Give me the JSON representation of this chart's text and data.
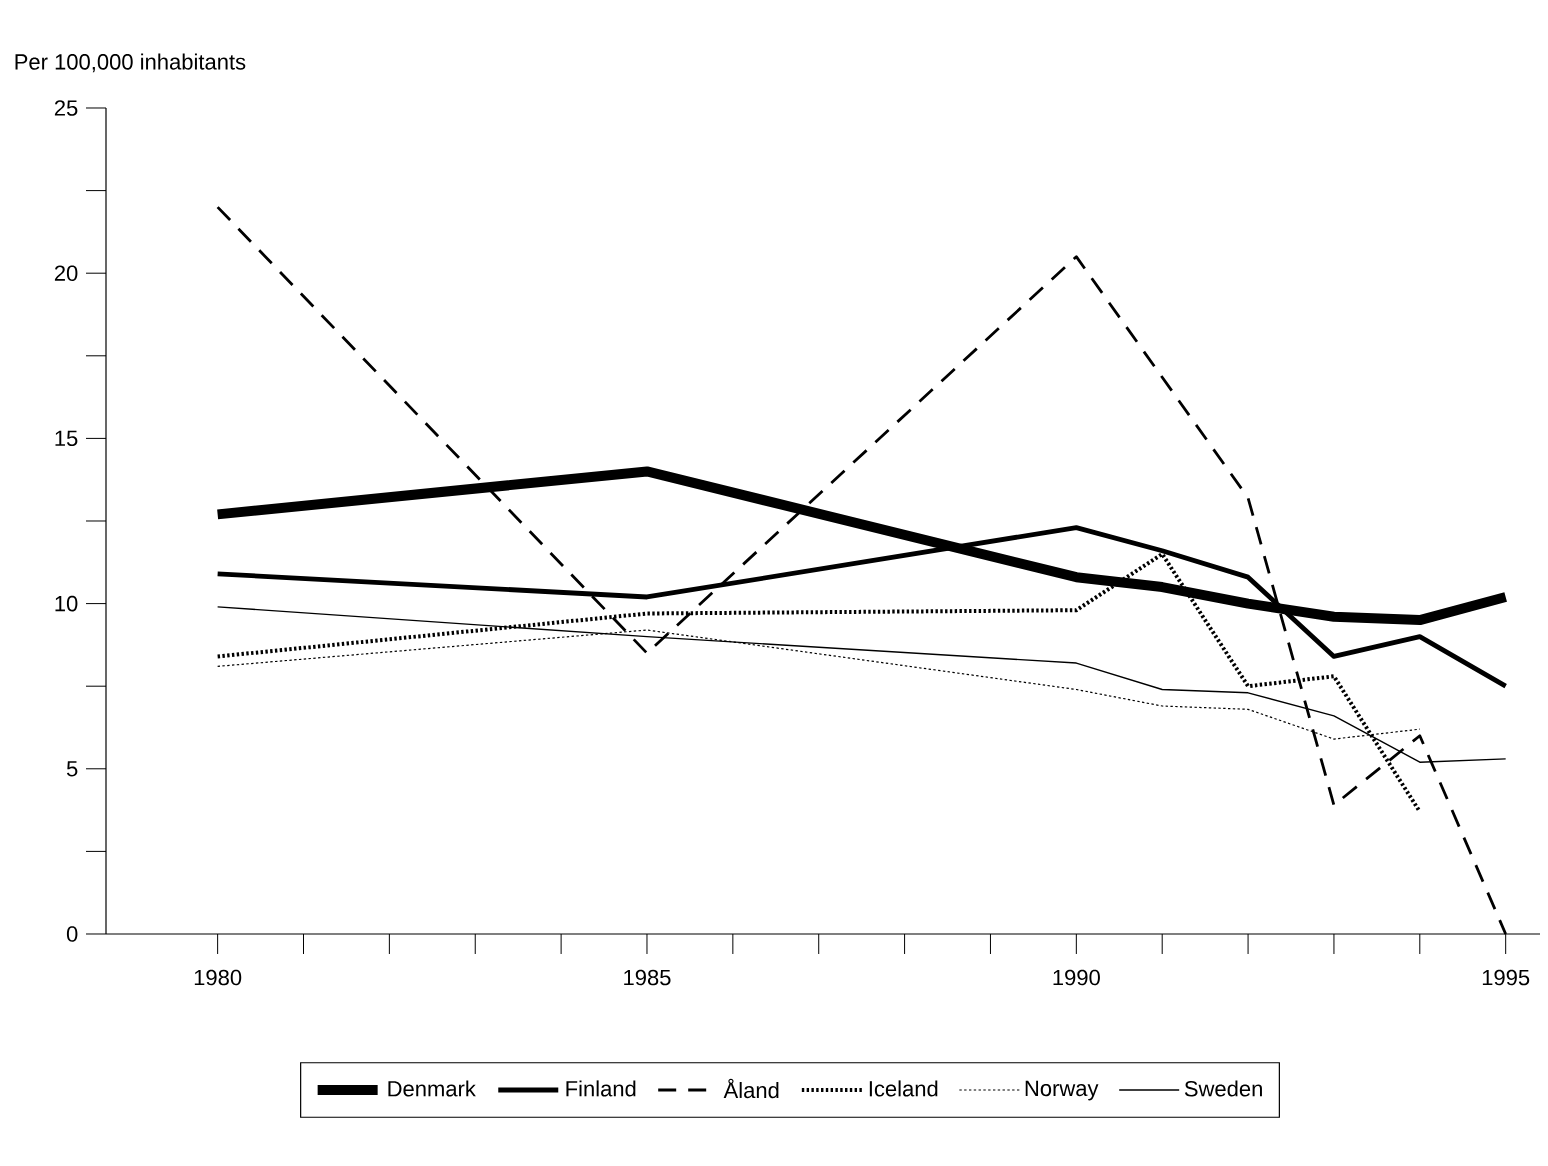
{
  "chart_data": {
    "type": "line",
    "ylabel": "Per 100,000 inhabitants",
    "x": [
      1980,
      1985,
      1990,
      1991,
      1992,
      1993,
      1994,
      1995
    ],
    "xlim": [
      1978.7,
      1995.4
    ],
    "ylim": [
      0,
      25
    ],
    "xticks": [
      1980,
      {
        "value": 1981,
        "label": null
      },
      {
        "value": 1982,
        "label": null
      },
      {
        "value": 1983,
        "label": null
      },
      {
        "value": 1984,
        "label": null
      },
      1985,
      {
        "value": 1986,
        "label": null
      },
      {
        "value": 1987,
        "label": null
      },
      {
        "value": 1988,
        "label": null
      },
      {
        "value": 1989,
        "label": null
      },
      1990,
      {
        "value": 1991,
        "label": null
      },
      {
        "value": 1992,
        "label": null
      },
      {
        "value": 1993,
        "label": null
      },
      {
        "value": 1994,
        "label": null
      },
      1995
    ],
    "yticks": [
      0,
      {
        "value": 2.5,
        "label": null
      },
      5,
      {
        "value": 7.5,
        "label": null
      },
      10,
      {
        "value": 12.5,
        "label": null
      },
      15,
      {
        "value": 17.5,
        "label": null
      },
      20,
      {
        "value": 22.5,
        "label": null
      },
      25
    ],
    "legend": "bottom",
    "series": [
      {
        "name": "Denmark",
        "color": "#000000",
        "line_style": "solid",
        "values": [
          12.7,
          14.0,
          10.8,
          10.5,
          10.0,
          9.6,
          9.5,
          10.2
        ]
      },
      {
        "name": "Finland",
        "color": "#000000",
        "line_style": "solid",
        "values": [
          10.9,
          10.2,
          12.3,
          11.6,
          10.8,
          8.4,
          9.0,
          7.5
        ]
      },
      {
        "name": "Åland",
        "color": "#000000",
        "line_style": "dashed",
        "x": [
          1980,
          1985,
          1990,
          1992,
          1993,
          1994,
          1995
        ],
        "values": [
          22.0,
          8.5,
          20.5,
          13.2,
          3.9,
          6.0,
          0
        ]
      },
      {
        "name": "Iceland",
        "color": "#000000",
        "line_style": "dotted",
        "x": [
          1980,
          1985,
          1990,
          1991,
          1992,
          1993,
          1994
        ],
        "values": [
          8.4,
          9.7,
          9.8,
          11.5,
          7.5,
          7.8,
          3.7
        ]
      },
      {
        "name": "Norway",
        "color": "#000000",
        "line_style": "dotted",
        "x": [
          1980,
          1985,
          1990,
          1991,
          1992,
          1993,
          1994
        ],
        "values": [
          8.1,
          9.2,
          7.4,
          6.9,
          6.8,
          5.9,
          6.2
        ]
      },
      {
        "name": "Sweden",
        "color": "#000000",
        "line_style": "solid",
        "values": [
          9.9,
          9.0,
          8.2,
          7.4,
          7.3,
          6.6,
          5.2,
          5.3
        ]
      }
    ]
  }
}
